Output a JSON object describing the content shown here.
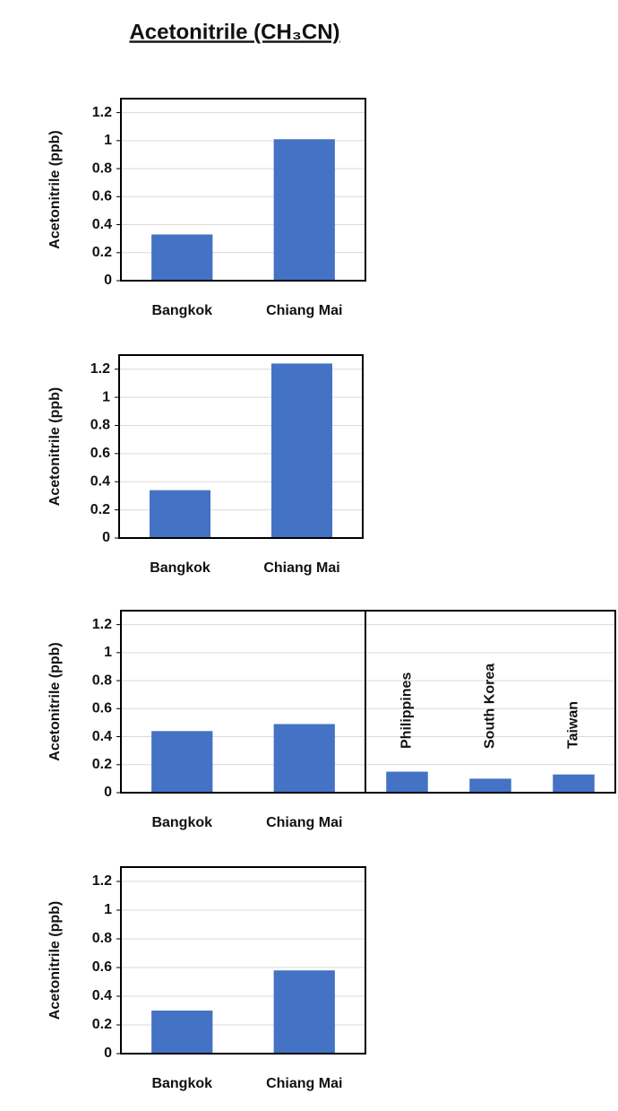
{
  "title": "Acetonitrile (CH₃CN)",
  "chart_data": [
    {
      "type": "bar",
      "ylabel": "Acetonitrile (ppb)",
      "categories": [
        "Bangkok",
        "Chiang Mai"
      ],
      "values": [
        0.33,
        1.01
      ],
      "color": "#4472c4",
      "ylim": [
        0,
        1.3
      ],
      "yticks": [
        0,
        0.2,
        0.4,
        0.6,
        0.8,
        1,
        1.2
      ],
      "grid": true
    },
    {
      "type": "bar",
      "ylabel": "Acetonitrile (ppb)",
      "categories": [
        "Bangkok",
        "Chiang Mai"
      ],
      "values": [
        0.34,
        1.24
      ],
      "color": "#4472c4",
      "ylim": [
        0,
        1.3
      ],
      "yticks": [
        0,
        0.2,
        0.4,
        0.6,
        0.8,
        1,
        1.2
      ],
      "grid": true
    },
    {
      "type": "bar",
      "ylabel": "Acetonitrile (ppb)",
      "categories": [
        "Bangkok",
        "Chiang Mai"
      ],
      "values": [
        0.44,
        0.49
      ],
      "color": "#4472c4",
      "ylim": [
        0,
        1.3
      ],
      "yticks": [
        0,
        0.2,
        0.4,
        0.6,
        0.8,
        1,
        1.2
      ],
      "grid": true
    },
    {
      "type": "bar",
      "categories": [
        "Philippines",
        "South Korea",
        "Taiwan"
      ],
      "values": [
        0.15,
        0.1,
        0.13
      ],
      "color": "#4472c4",
      "ylim": [
        0,
        1.3
      ],
      "yticks": [
        0,
        0.2,
        0.4,
        0.6,
        0.8,
        1,
        1.2
      ],
      "grid": true,
      "xtick_rotation": -90
    },
    {
      "type": "bar",
      "ylabel": "Acetonitrile (ppb)",
      "categories": [
        "Bangkok",
        "Chiang Mai"
      ],
      "values": [
        0.3,
        0.58
      ],
      "color": "#4472c4",
      "ylim": [
        0,
        1.3
      ],
      "yticks": [
        0,
        0.2,
        0.4,
        0.6,
        0.8,
        1,
        1.2
      ],
      "grid": true
    }
  ]
}
